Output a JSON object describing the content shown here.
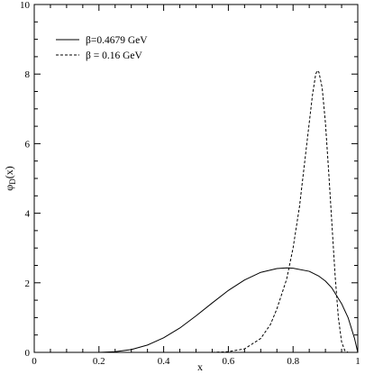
{
  "chart_data": {
    "type": "line",
    "xlabel": "x",
    "ylabel": "φD(x)",
    "ylabel_main": "φ",
    "ylabel_sub": "D",
    "ylabel_tail": "(x)",
    "xlim": [
      0,
      1
    ],
    "ylim": [
      0,
      10
    ],
    "xticks": [
      "0",
      "0.2",
      "0.4",
      "0.6",
      "0.8",
      "1"
    ],
    "yticks": [
      "0",
      "2",
      "4",
      "6",
      "8",
      "10"
    ],
    "grid": false,
    "legend_position": "top-left",
    "series": [
      {
        "name": "β=0.4679 GeV",
        "style": "solid",
        "color": "#000000",
        "x": [
          0.2,
          0.25,
          0.3,
          0.35,
          0.4,
          0.45,
          0.5,
          0.55,
          0.6,
          0.65,
          0.7,
          0.75,
          0.78,
          0.8,
          0.85,
          0.88,
          0.9,
          0.92,
          0.95,
          0.97,
          0.99,
          1.0
        ],
        "y": [
          0.0,
          0.02,
          0.08,
          0.21,
          0.42,
          0.7,
          1.05,
          1.42,
          1.78,
          2.08,
          2.3,
          2.41,
          2.43,
          2.42,
          2.33,
          2.19,
          2.05,
          1.85,
          1.4,
          1.0,
          0.4,
          0.0
        ]
      },
      {
        "name": "β = 0.16 GeV",
        "style": "dashed",
        "color": "#000000",
        "x": [
          0.55,
          0.6,
          0.65,
          0.7,
          0.73,
          0.75,
          0.78,
          0.8,
          0.82,
          0.84,
          0.86,
          0.87,
          0.875,
          0.88,
          0.89,
          0.9,
          0.91,
          0.92,
          0.93,
          0.94,
          0.95,
          0.96,
          0.97
        ],
        "y": [
          0.0,
          0.02,
          0.1,
          0.4,
          0.8,
          1.25,
          2.1,
          3.0,
          4.2,
          5.8,
          7.4,
          8.0,
          8.1,
          8.05,
          7.6,
          6.6,
          5.2,
          3.7,
          2.2,
          1.0,
          0.3,
          0.05,
          0.0
        ]
      }
    ]
  }
}
